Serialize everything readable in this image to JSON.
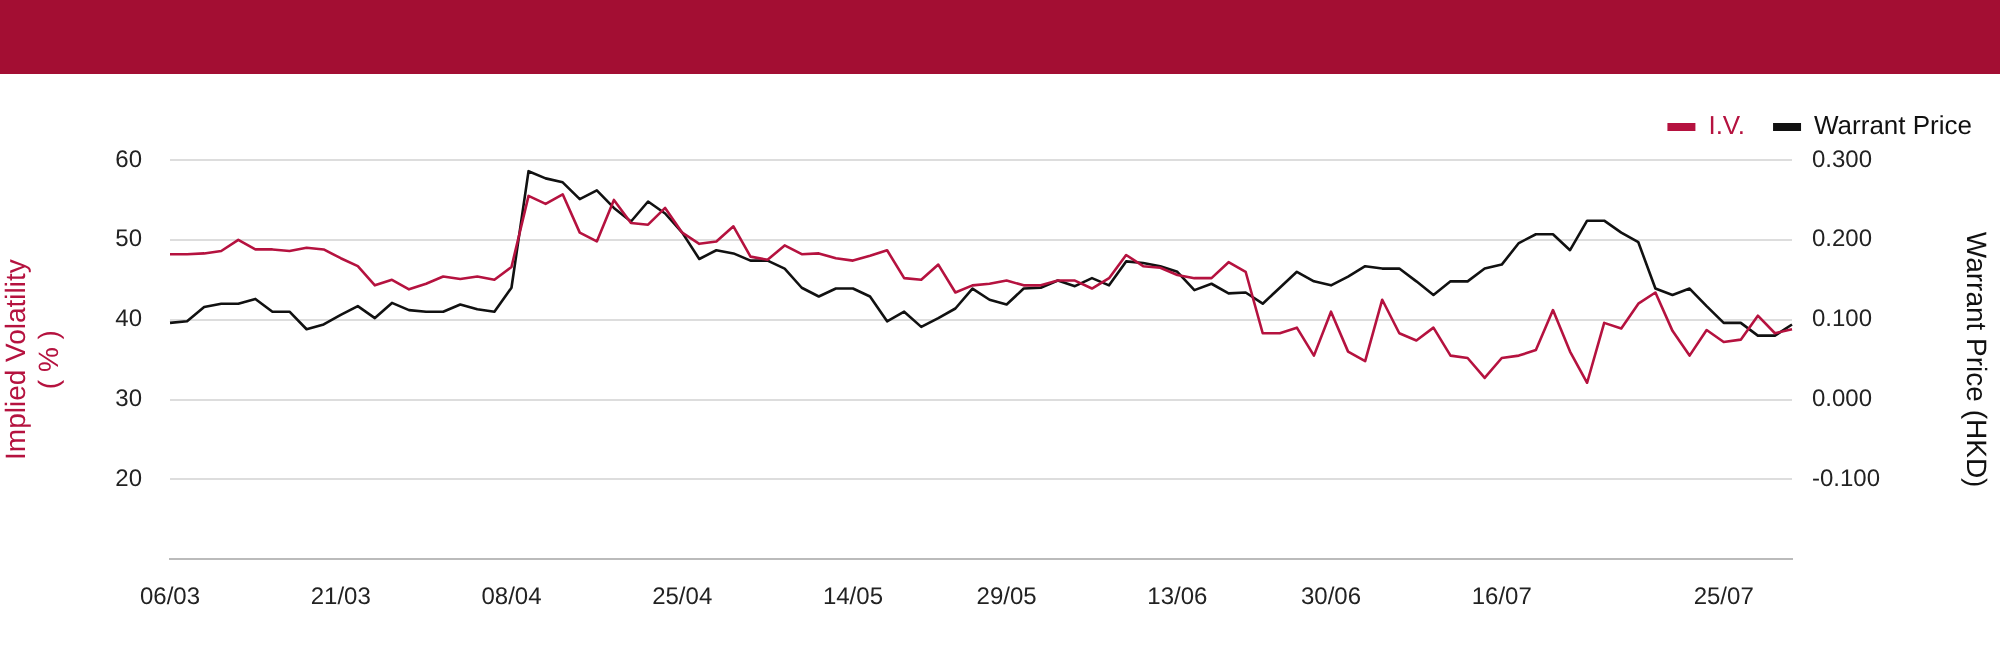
{
  "chart_data": {
    "type": "line",
    "ylabel": "Implied Volatility\n( % )",
    "y2label": "Warrant Price (HKD)",
    "categories": [
      "06/03",
      null,
      null,
      null,
      null,
      null,
      null,
      null,
      null,
      null,
      "21/03",
      null,
      null,
      null,
      null,
      null,
      null,
      null,
      null,
      null,
      "08/04",
      null,
      null,
      null,
      null,
      null,
      null,
      null,
      null,
      null,
      "25/04",
      null,
      null,
      null,
      null,
      null,
      null,
      null,
      null,
      null,
      "14/05",
      null,
      null,
      null,
      null,
      null,
      null,
      null,
      null,
      "29/05",
      null,
      null,
      null,
      null,
      null,
      null,
      null,
      null,
      null,
      "13/06",
      null,
      null,
      null,
      null,
      null,
      null,
      null,
      null,
      "30/06",
      null,
      null,
      null,
      null,
      null,
      null,
      null,
      null,
      null,
      "16/07",
      null,
      null,
      null,
      null,
      null,
      null,
      null,
      null,
      null,
      null,
      null,
      null,
      "25/07",
      null,
      null,
      null,
      null
    ],
    "series": [
      {
        "name": "I.V.",
        "color": "#b5123f",
        "values": [
          48.2,
          48.2,
          48.3,
          48.6,
          50.0,
          48.8,
          48.8,
          48.6,
          49.0,
          48.8,
          47.7,
          46.7,
          44.3,
          45.0,
          43.8,
          44.5,
          45.4,
          45.1,
          45.4,
          45.0,
          46.6,
          55.5,
          54.5,
          55.7,
          50.9,
          49.8,
          55.0,
          52.1,
          51.9,
          54.0,
          50.9,
          49.5,
          49.8,
          51.7,
          47.9,
          47.5,
          49.3,
          48.2,
          48.3,
          47.7,
          47.4,
          48.0,
          48.7,
          45.2,
          45.0,
          46.9,
          43.4,
          44.3,
          44.5,
          44.9,
          44.3,
          44.3,
          44.9,
          44.9,
          43.9,
          45.2,
          48.1,
          46.7,
          46.5,
          45.6,
          45.2,
          45.2,
          47.2,
          46.0,
          38.3,
          38.3,
          39.0,
          35.5,
          41.0,
          36.0,
          34.8,
          42.5,
          38.3,
          37.4,
          39.0,
          35.5,
          35.2,
          32.7,
          35.2,
          35.5,
          36.2,
          41.2,
          36.0,
          32.1,
          39.6,
          38.9,
          42.0,
          43.4,
          38.6,
          35.5,
          38.7,
          37.2,
          37.5,
          40.5,
          38.3,
          38.8
        ]
      },
      {
        "name": "Warrant Price",
        "color": "#111111",
        "axis": "y2",
        "values": [
          0.096,
          0.098,
          0.116,
          0.12,
          0.12,
          0.126,
          0.11,
          0.11,
          0.088,
          0.094,
          0.106,
          0.117,
          0.102,
          0.121,
          0.112,
          0.11,
          0.11,
          0.119,
          0.113,
          0.11,
          0.14,
          0.286,
          0.277,
          0.272,
          0.251,
          0.262,
          0.24,
          0.223,
          0.248,
          0.233,
          0.209,
          0.176,
          0.187,
          0.183,
          0.174,
          0.174,
          0.164,
          0.14,
          0.129,
          0.139,
          0.139,
          0.129,
          0.098,
          0.11,
          0.091,
          0.102,
          0.114,
          0.139,
          0.125,
          0.119,
          0.139,
          0.14,
          0.149,
          0.142,
          0.152,
          0.143,
          0.173,
          0.171,
          0.167,
          0.16,
          0.137,
          0.145,
          0.133,
          0.134,
          0.12,
          0.14,
          0.16,
          0.148,
          0.143,
          0.154,
          0.167,
          0.164,
          0.164,
          0.148,
          0.131,
          0.148,
          0.148,
          0.164,
          0.169,
          0.196,
          0.207,
          0.207,
          0.187,
          0.224,
          0.224,
          0.209,
          0.197,
          0.139,
          0.131,
          0.139,
          0.117,
          0.096,
          0.096,
          0.08,
          0.08,
          0.094
        ]
      }
    ],
    "ylim": [
      10,
      60
    ],
    "yticks": [
      {
        "value": 10,
        "label": null
      },
      20,
      30,
      40,
      50,
      60
    ],
    "y2lim": [
      -0.2,
      0.3
    ],
    "y2ticks": [
      {
        "value": -0.2,
        "label": null
      },
      {
        "value": -0.1,
        "label": "-0.100"
      },
      {
        "value": 0,
        "label": "0.000"
      },
      {
        "value": 0.1,
        "label": "0.100"
      },
      {
        "value": 0.2,
        "label": "0.200"
      },
      {
        "value": 0.3,
        "label": "0.300"
      }
    ],
    "grid": "y",
    "legend": "top right",
    "marker": "none",
    "line_style": "solid"
  }
}
